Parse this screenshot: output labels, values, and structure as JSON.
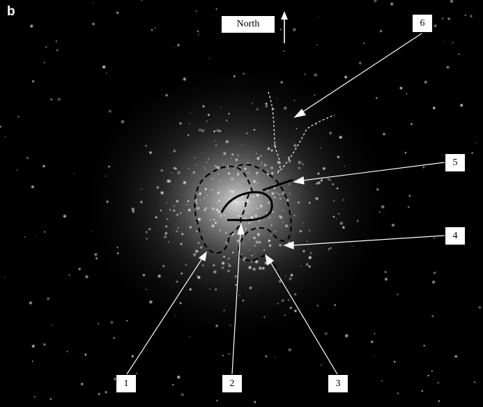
{
  "panel_label": "b",
  "compass": {
    "label": "North"
  },
  "callouts": [
    {
      "id": "1",
      "label": "1"
    },
    {
      "id": "2",
      "label": "2"
    },
    {
      "id": "3",
      "label": "3"
    },
    {
      "id": "4",
      "label": "4"
    },
    {
      "id": "5",
      "label": "5"
    },
    {
      "id": "6",
      "label": "6"
    }
  ],
  "colors": {
    "background": "#000000",
    "stars": "#ffffff",
    "callout_lines": "#ffffff",
    "label_box": "#ffffff"
  }
}
